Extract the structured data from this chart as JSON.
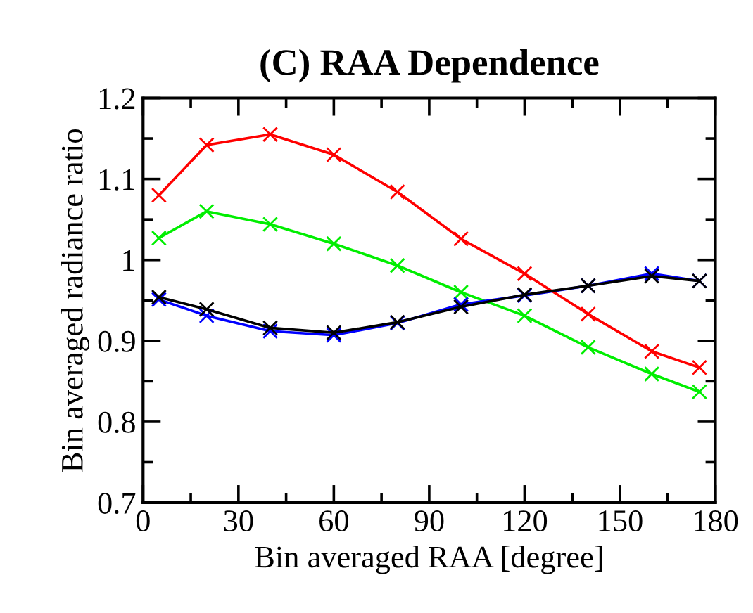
{
  "chart_data": {
    "type": "line",
    "title": "(C) RAA Dependence",
    "xlabel": "Bin averaged RAA [degree]",
    "ylabel": "Bin averaged radiance ratio",
    "x": [
      5,
      20,
      40,
      60,
      80,
      100,
      120,
      140,
      160,
      175
    ],
    "series": [
      {
        "color": "#ff0000",
        "values": [
          1.08,
          1.142,
          1.155,
          1.13,
          1.084,
          1.026,
          0.983,
          0.933,
          0.887,
          0.867
        ]
      },
      {
        "color": "#00ee00",
        "values": [
          1.027,
          1.06,
          1.044,
          1.02,
          0.993,
          0.96,
          0.931,
          0.892,
          0.859,
          0.837
        ]
      },
      {
        "color": "#0000ff",
        "values": [
          0.951,
          0.931,
          0.912,
          0.907,
          0.922,
          0.945,
          0.956,
          0.968,
          0.983,
          0.974
        ]
      },
      {
        "color": "#000000",
        "values": [
          0.954,
          0.939,
          0.916,
          0.91,
          0.923,
          0.942,
          0.957,
          0.968,
          0.98,
          0.974
        ]
      }
    ],
    "xlim": [
      0,
      180
    ],
    "xticks": [
      0,
      30,
      60,
      90,
      120,
      150,
      180
    ],
    "ylim": [
      0.7,
      1.2
    ],
    "yticks": [
      0.7,
      0.8,
      0.9,
      1,
      1.1,
      1.2
    ],
    "grid": false,
    "legend": false,
    "marker": "cross",
    "line_style": "solid"
  }
}
